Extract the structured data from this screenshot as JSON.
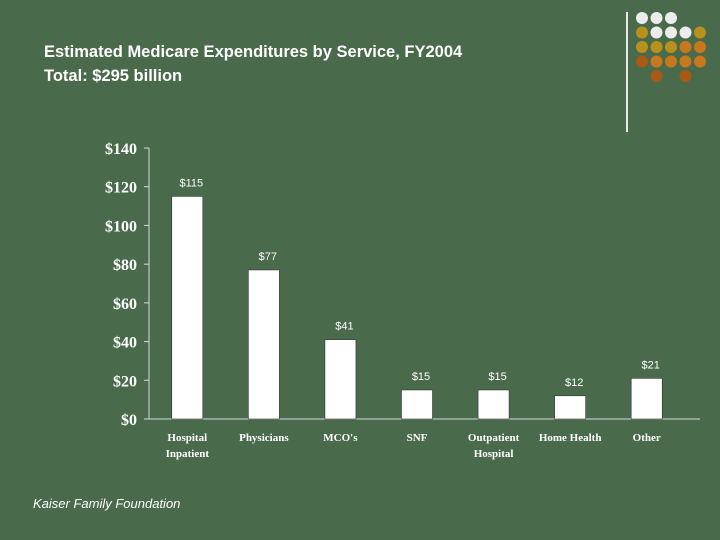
{
  "title": {
    "line1": "Estimated Medicare Expenditures by Service, FY2004",
    "line2": "Total:  $295 billion"
  },
  "footer": {
    "source": "Kaiser Family Foundation"
  },
  "decor": {
    "colors": {
      "white": "#ececec",
      "gold": "#b8901c",
      "orange": "#c8781c",
      "brown": "#a85a12",
      "background": "#4a6a4c"
    },
    "grid": [
      [
        "white",
        "white",
        "white",
        "",
        ""
      ],
      [
        "gold",
        "white",
        "white",
        "white",
        "gold"
      ],
      [
        "gold",
        "gold",
        "gold",
        "orange",
        "orange"
      ],
      [
        "brown",
        "orange",
        "orange",
        "orange",
        "orange"
      ],
      [
        "",
        "brown",
        "",
        "brown",
        ""
      ]
    ]
  },
  "chart_data": {
    "type": "bar",
    "title": "Estimated Medicare Expenditures by Service, FY2004",
    "categories": [
      [
        "Hospital",
        "Inpatient"
      ],
      [
        "Physicians"
      ],
      [
        "MCO's"
      ],
      [
        "SNF"
      ],
      [
        "Outpatient",
        "Hospital"
      ],
      [
        "Home Health"
      ],
      [
        "Other"
      ]
    ],
    "values": [
      115,
      77,
      41,
      15,
      15,
      12,
      21
    ],
    "value_labels": [
      "$115",
      "$77",
      "$41",
      "$15",
      "$15",
      "$12",
      "$21"
    ],
    "y_ticks": [
      0,
      20,
      40,
      60,
      80,
      100,
      120,
      140
    ],
    "y_tick_labels": [
      "$0",
      "$20",
      "$40",
      "$60",
      "$80",
      "$100",
      "$120",
      "$140"
    ],
    "ylim": [
      0,
      140
    ],
    "xlabel": "",
    "ylabel": "",
    "grid": false,
    "bar_color": "#ffffff"
  }
}
